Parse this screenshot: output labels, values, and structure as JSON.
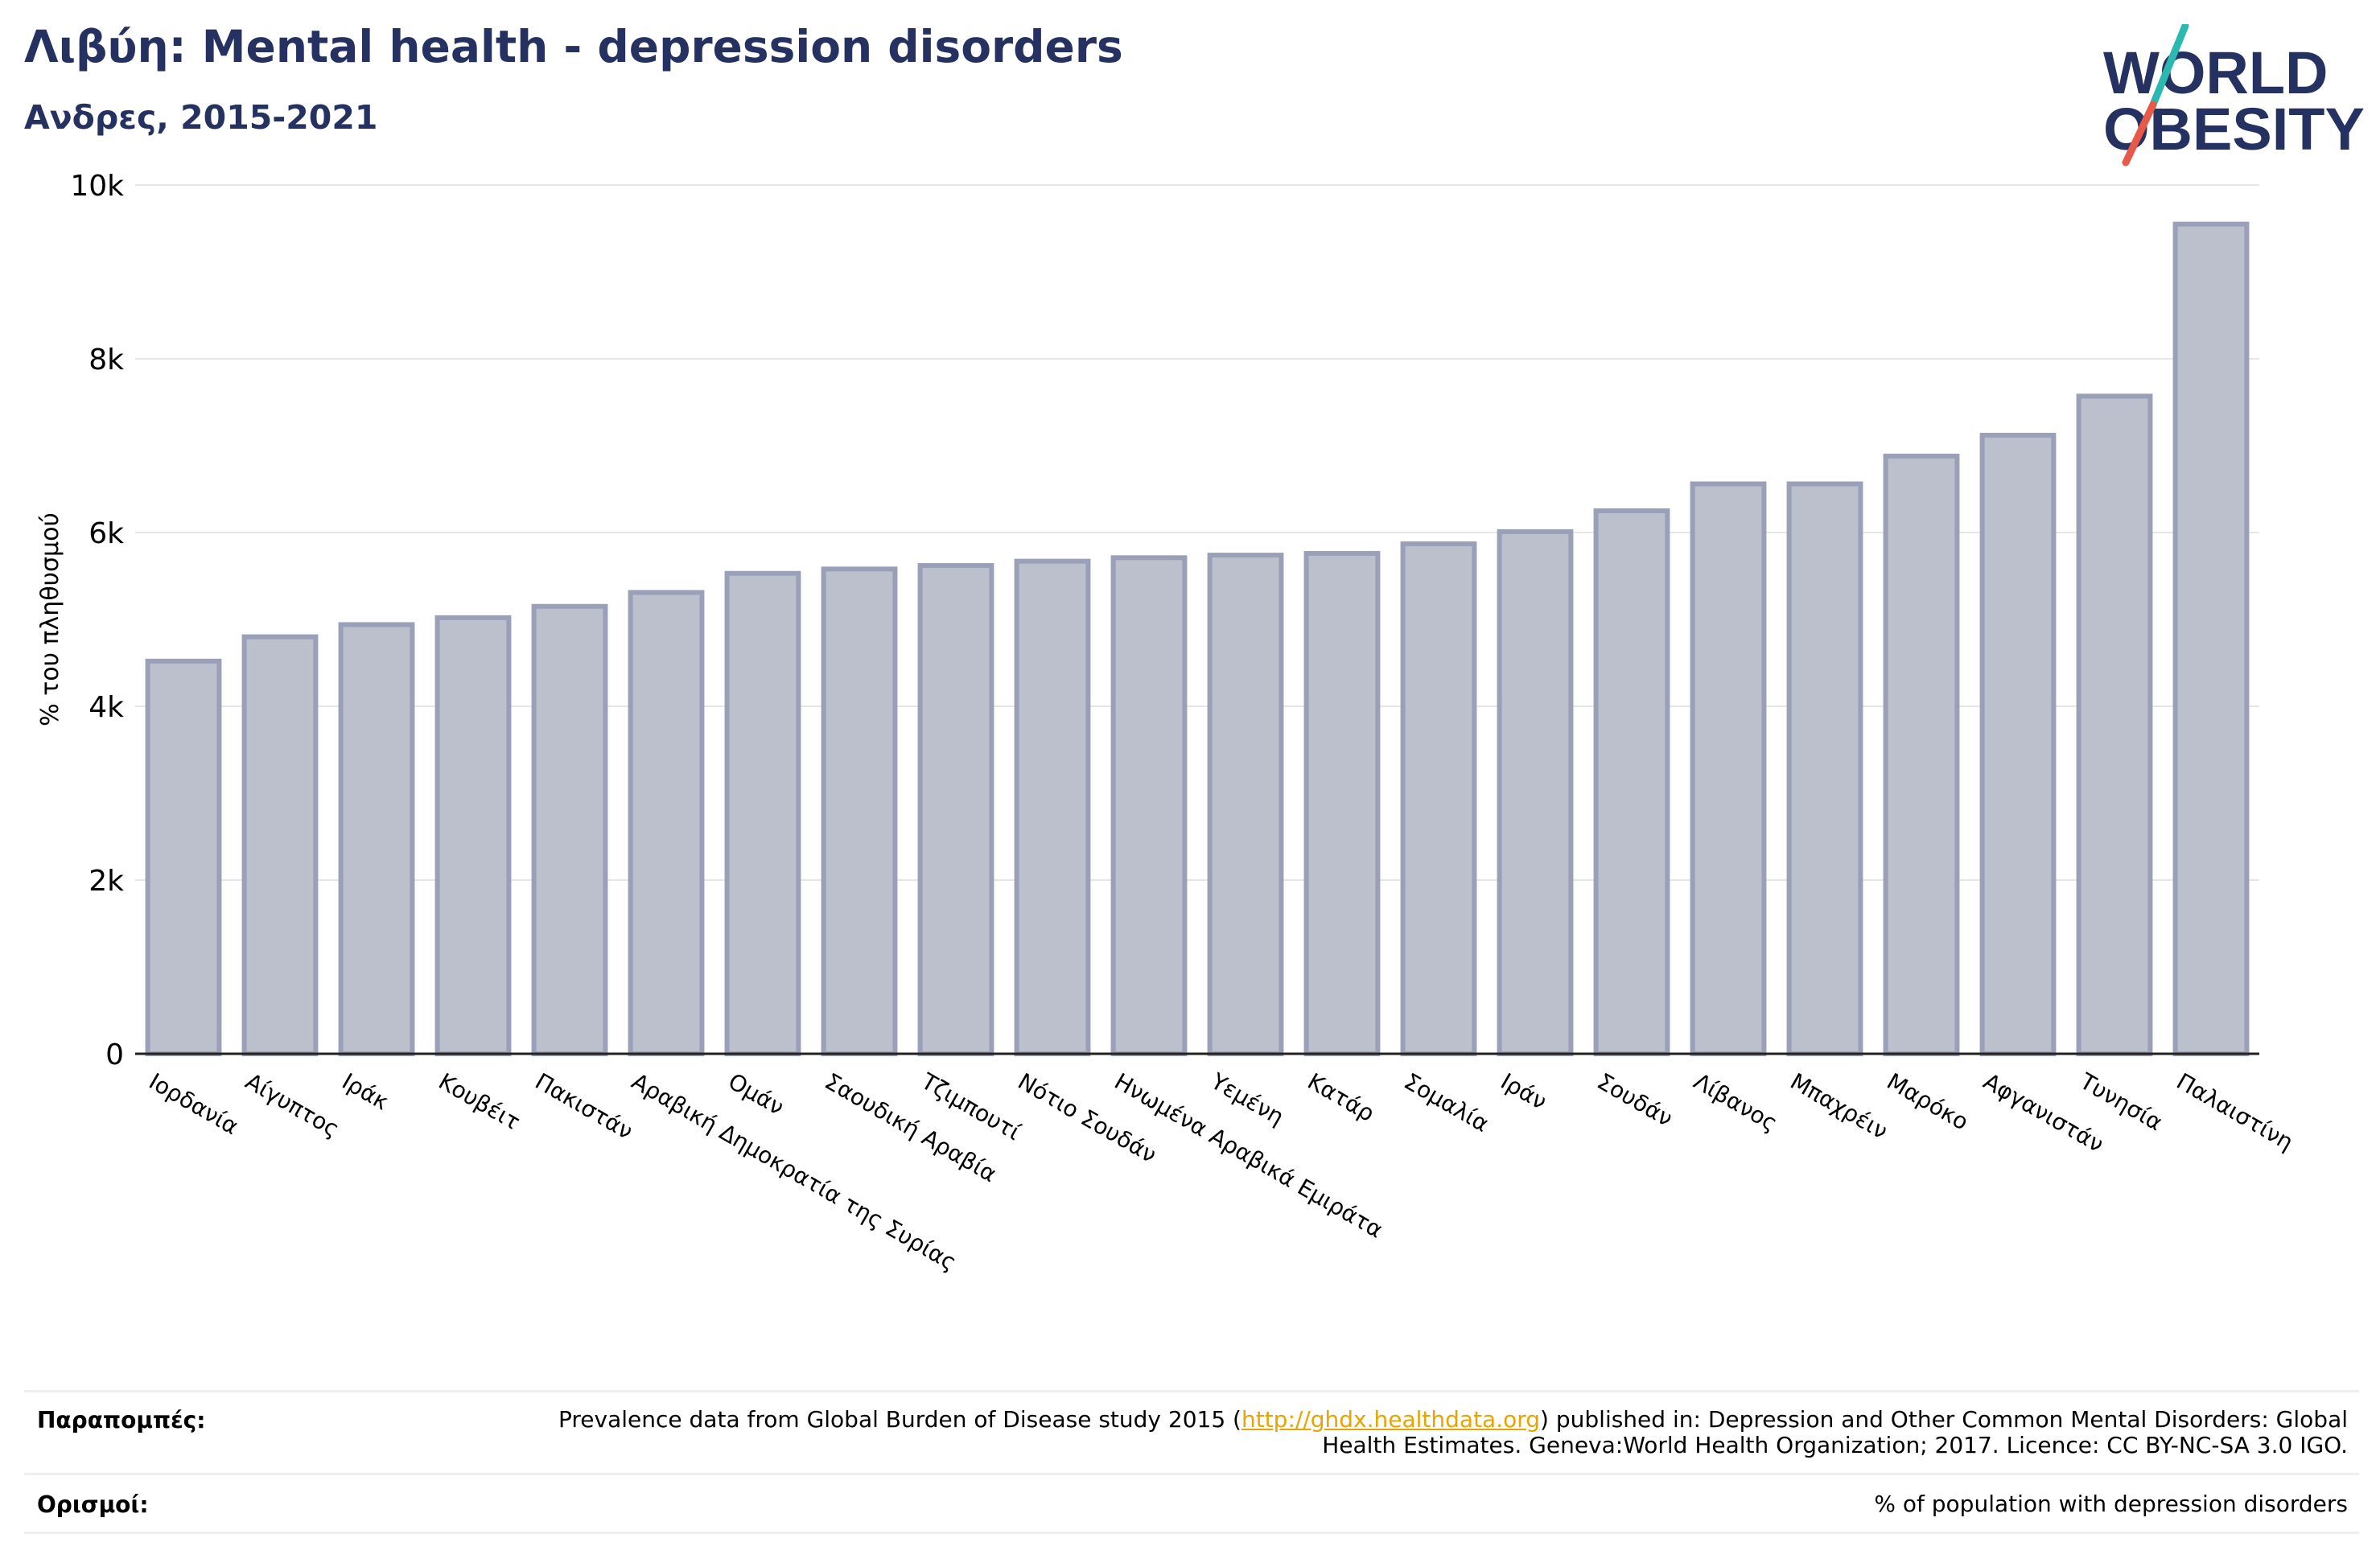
{
  "header": {
    "title": "Λιβύη: Mental health - depression disorders",
    "subtitle": "Ανδρες, 2015-2021"
  },
  "logo": {
    "line1": "WORLD",
    "line2": "OBESITY",
    "colors": {
      "text": "#253161",
      "slash_top": "#2bb8b0",
      "slash_bottom": "#e8594a"
    }
  },
  "chart_data": {
    "type": "bar",
    "ylabel": "% του πληθυσμού",
    "xlabel": "",
    "ylim": [
      0,
      10000
    ],
    "yticks": [
      0,
      2000,
      4000,
      6000,
      8000,
      10000
    ],
    "ytick_labels": [
      "0",
      "2k",
      "4k",
      "6k",
      "8k",
      "10k"
    ],
    "grid": true,
    "bar_color": "#bcc0cd",
    "bar_edge_color": "#9aa0b8",
    "categories": [
      "Ιορδανία",
      "Αίγυπτος",
      "Ιράκ",
      "Κουβέιτ",
      "Πακιστάν",
      "Αραβική Δημοκρατία της Συρίας",
      "Ομάν",
      "Σαουδική Αραβία",
      "Τζιμπουτί",
      "Νότιο Σουδάν",
      "Ηνωμένα Αραβικά Εμιράτα",
      "Υεμένη",
      "Κατάρ",
      "Σομαλία",
      "Ιράν",
      "Σουδάν",
      "Λίβανος",
      "Μπαχρέιν",
      "Μαρόκο",
      "Αφγανιστάν",
      "Τυνησία",
      "Παλαιστίνη"
    ],
    "values": [
      4520,
      4800,
      4940,
      5020,
      5150,
      5310,
      5530,
      5580,
      5620,
      5670,
      5710,
      5740,
      5760,
      5870,
      6010,
      6250,
      6560,
      6560,
      6880,
      7120,
      7570,
      9550
    ]
  },
  "footer": {
    "references_label": "Παραπομπές:",
    "references_pre": "Prevalence data from Global Burden of Disease study 2015 (",
    "references_link": "http://ghdx.healthdata.org",
    "references_post": ") published in: Depression and Other Common Mental Disorders: Global Health Estimates. Geneva:World Health Organization; 2017. Licence: CC BY-NC-SA 3.0 IGO.",
    "definitions_label": "Ορισμοί:",
    "definitions_text": "% of population with depression disorders"
  }
}
